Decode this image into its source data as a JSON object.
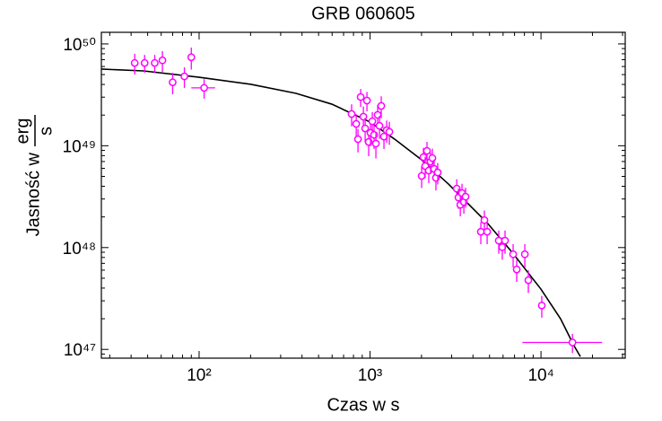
{
  "chart_data": {
    "type": "scatter",
    "title": "GRB 060605",
    "xlabel": "Czas w s",
    "ylabel": "Jasność w",
    "ylabel_unit_numerator": "erg",
    "ylabel_unit_denominator": "s",
    "log_x": true,
    "log_y": true,
    "xlim": [
      26.8,
      31100
    ],
    "ylim": [
      8.2e+46,
      1.3e+50
    ],
    "xticks": [
      {
        "value": 100,
        "label": "10²"
      },
      {
        "value": 1000,
        "label": "10³"
      },
      {
        "value": 10000,
        "label": "10⁴"
      }
    ],
    "yticks": [
      {
        "value": 1e+47,
        "label": "10⁴⁷"
      },
      {
        "value": 1e+48,
        "label": "10⁴⁸"
      },
      {
        "value": 1e+49,
        "label": "10⁴⁹"
      },
      {
        "value": 1e+50,
        "label": "10⁵⁰"
      }
    ],
    "series": [
      {
        "type": "scatter",
        "color": "#ff00ff",
        "x": [
          42,
          48,
          55,
          61,
          70,
          82,
          90,
          107,
          780,
          830,
          850,
          881,
          914,
          936,
          959,
          982,
          1006,
          1031,
          1056,
          1082,
          1108,
          1135,
          1163,
          1206,
          1251,
          1297,
          2004,
          2052,
          2102,
          2153,
          2206,
          2259,
          2315,
          2371,
          2429,
          2488,
          3215,
          3289,
          3373,
          3451,
          3539,
          3622,
          4447,
          4667,
          4842,
          5662,
          5938,
          6161,
          6871,
          7211,
          8044,
          8434,
          10110,
          15280
        ],
        "values": [
          6.5e+49,
          6.5e+49,
          6.5e+49,
          6.9e+49,
          4.2e+49,
          4.8e+49,
          7.4e+49,
          3.7e+49,
          2.05e+49,
          1.64e+49,
          1.16e+49,
          3.01e+49,
          1.93e+49,
          1.48e+49,
          2.78e+49,
          1.09e+49,
          1.34e+49,
          1.74e+49,
          1.28e+49,
          1.05e+49,
          2.01e+49,
          1.57e+49,
          2.46e+49,
          1.23e+49,
          1.42e+49,
          1.37e+49,
          5.05e+48,
          7.73e+48,
          6.31e+48,
          8.91e+48,
          5.7e+48,
          6.98e+48,
          7.57e+48,
          5.93e+48,
          4.84e+48,
          5.47e+48,
          3.79e+48,
          3.1e+48,
          2.63e+48,
          3.43e+48,
          2.8e+48,
          3.16e+48,
          1.43e+48,
          1.86e+48,
          1.43e+48,
          1.17e+48,
          1.01e+48,
          1.17e+48,
          8.6e+47,
          6.1e+47,
          8.6e+47,
          4.78e+47,
          2.7e+47,
          1.17e+47
        ],
        "yerr": [
          1.5e+49,
          1.3e+49,
          1.3e+49,
          1.6e+49,
          1e+49,
          1.1e+49,
          1.8e+49,
          8e+48,
          5e+48,
          4e+48,
          3e+48,
          6e+48,
          5e+48,
          4e+48,
          6e+48,
          3e+48,
          3.5e+48,
          4e+48,
          3.5e+48,
          3e+48,
          5e+48,
          4e+48,
          6e+48,
          3e+48,
          3.5e+48,
          3.5e+48,
          1.2e+48,
          1.8e+48,
          1.5e+48,
          2e+48,
          1.4e+48,
          1.6e+48,
          1.8e+48,
          1.4e+48,
          1.2e+48,
          1.3e+48,
          9e+47,
          7e+47,
          6e+47,
          8e+47,
          6.5e+47,
          7e+47,
          3.5e+47,
          4.5e+47,
          3.5e+47,
          3e+47,
          2.5e+47,
          3e+47,
          2.2e+47,
          1.5e+47,
          2.2e+47,
          1.2e+47,
          6.5e+46,
          2.5e+46
        ],
        "xerr": [
          null,
          null,
          null,
          null,
          null,
          null,
          null,
          17,
          null,
          null,
          null,
          null,
          null,
          null,
          null,
          null,
          null,
          null,
          null,
          null,
          null,
          null,
          null,
          null,
          null,
          null,
          null,
          null,
          null,
          null,
          null,
          null,
          null,
          null,
          null,
          null,
          null,
          null,
          null,
          null,
          null,
          null,
          null,
          null,
          null,
          null,
          null,
          null,
          null,
          null,
          null,
          null,
          null,
          7500
        ]
      },
      {
        "type": "line",
        "color": "#000000",
        "x": [
          26.8,
          47.3,
          100,
          201,
          369,
          598,
          1000,
          1393,
          2004,
          2877,
          4842,
          6714,
          10000,
          13030,
          15630,
          17000
        ],
        "values": [
          5.66e+49,
          5.43e+49,
          4.71e+49,
          4.01e+49,
          3.27e+49,
          2.56e+49,
          1.71e+49,
          1.16e+49,
          7.26e+48,
          4.2e+48,
          1.75e+48,
          9.15e+47,
          3.9e+47,
          1.99e+47,
          1.08e+47,
          8.5e+46
        ]
      }
    ]
  }
}
